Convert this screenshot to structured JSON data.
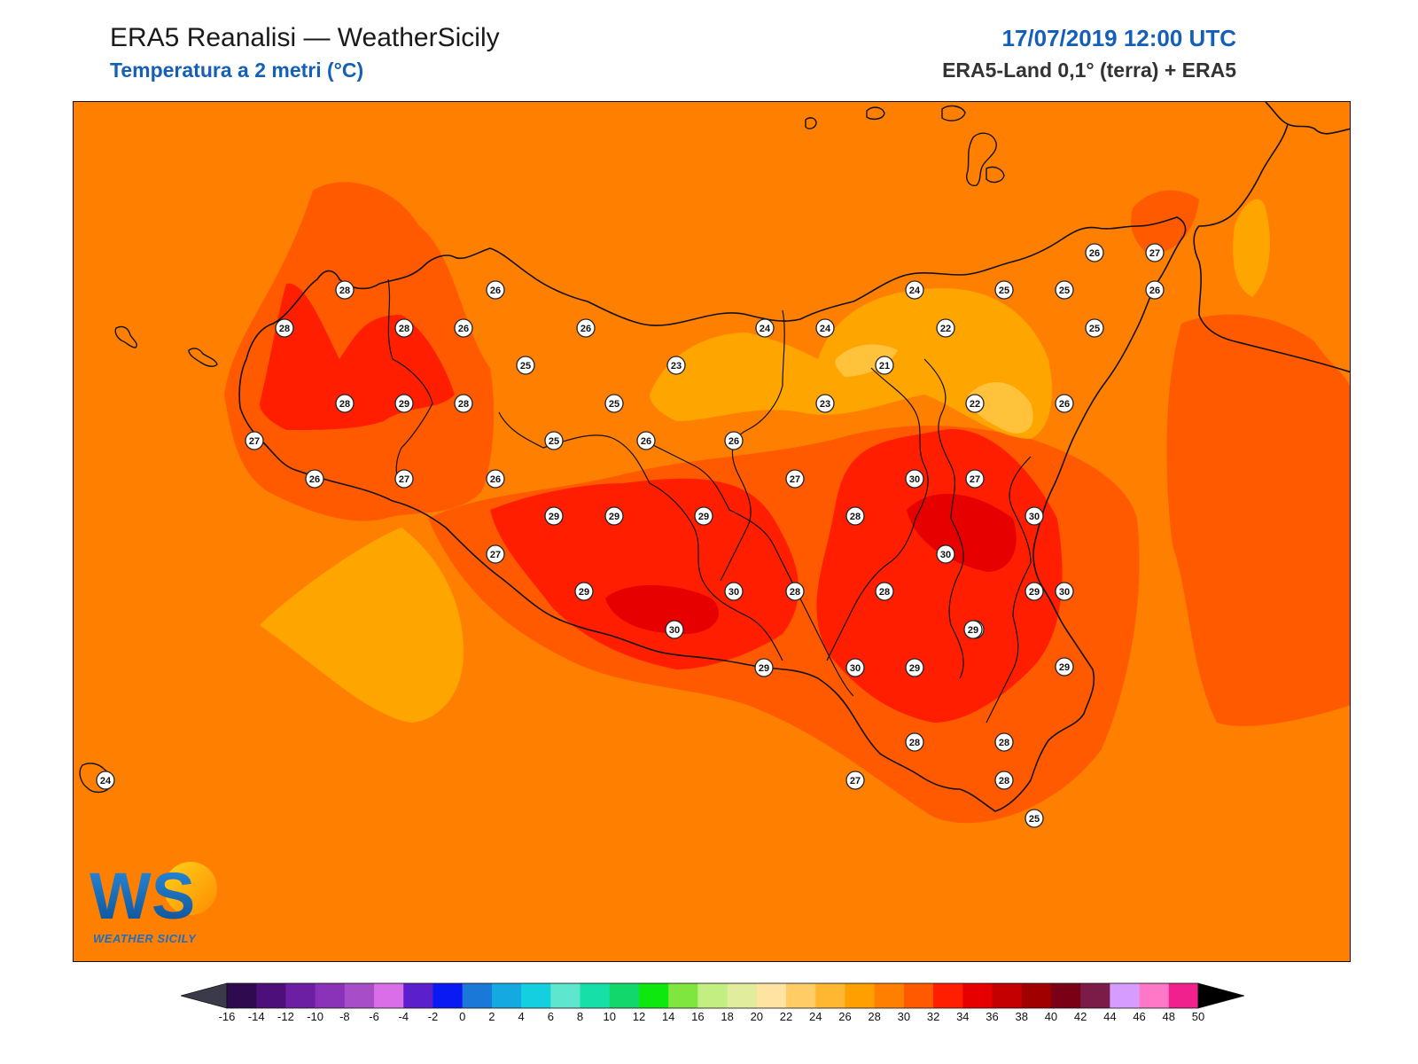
{
  "header": {
    "title": "ERA5 Reanalisi — WeatherSicily",
    "subtitle": "Temperatura a 2 metri (°C)",
    "datetime": "17/07/2019 12:00 UTC",
    "source": "ERA5-Land 0,1° (terra) + ERA5"
  },
  "logo": {
    "mark": "WS",
    "text": "WEATHER SICILY",
    "icon": "weathersicily-logo"
  },
  "map": {
    "background_color": "#ff7f00",
    "station_values": [
      "28",
      "26",
      "28",
      "28",
      "26",
      "26",
      "25",
      "23",
      "24",
      "24",
      "24",
      "22",
      "25",
      "25",
      "25",
      "26",
      "26",
      "27",
      "21",
      "28",
      "29",
      "28",
      "25",
      "23",
      "22",
      "26",
      "27",
      "25",
      "26",
      "26",
      "26",
      "27",
      "26",
      "27",
      "27",
      "29",
      "29",
      "29",
      "28",
      "30",
      "27",
      "30",
      "30",
      "28",
      "29",
      "30",
      "28",
      "29",
      "29",
      "30",
      "30",
      "28",
      "29",
      "29",
      "30",
      "29",
      "28",
      "28",
      "28",
      "27",
      "25",
      "24"
    ]
  },
  "colorbar": {
    "labels": [
      "-16",
      "-14",
      "-12",
      "-10",
      "-8",
      "-6",
      "-4",
      "-2",
      "0",
      "2",
      "4",
      "6",
      "8",
      "10",
      "12",
      "14",
      "16",
      "18",
      "20",
      "22",
      "24",
      "26",
      "28",
      "30",
      "32",
      "34",
      "36",
      "38",
      "40",
      "42",
      "44",
      "46",
      "48",
      "50"
    ],
    "colors": [
      "#2f0a4e",
      "#4d0f79",
      "#6d1fa3",
      "#8a32b8",
      "#a64dc7",
      "#d96ee8",
      "#5b1fcc",
      "#0a1af2",
      "#1a78d8",
      "#14a9e0",
      "#14cfe0",
      "#5ee6cf",
      "#16e0a8",
      "#12d76a",
      "#0ee80e",
      "#7ee63e",
      "#c3ee82",
      "#e1ec9c",
      "#ffe3a3",
      "#ffcc66",
      "#ffb732",
      "#ff9f00",
      "#ff7f00",
      "#ff5a00",
      "#ff1e00",
      "#e60000",
      "#c40000",
      "#a00000",
      "#7a0016",
      "#7a1b48",
      "#d79cff",
      "#ff78c8",
      "#f0208c",
      "#7f7f7f",
      "#3a3a3a"
    ]
  }
}
